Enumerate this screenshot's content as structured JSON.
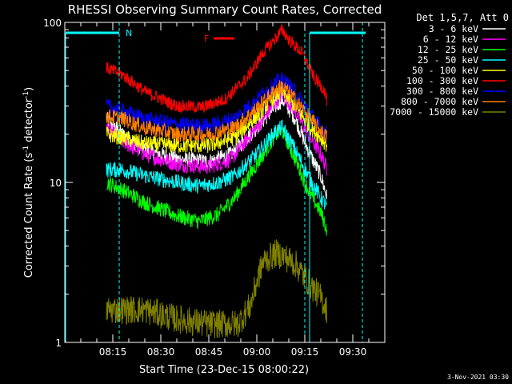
{
  "chart_data": {
    "type": "line",
    "title": "RHESSI Observing Summary Count Rates, Corrected",
    "xlabel": "Start Time (23-Dec-15 08:00:22)",
    "ylabel_main": "Corrected Count Rate (s",
    "ylabel_sup1": "-1",
    "ylabel_mid": " detector",
    "ylabel_sup2": "-1",
    "ylabel_end": ")",
    "y_scale": "log",
    "ylim": [
      1,
      100
    ],
    "xlim_minutes": [
      0,
      100
    ],
    "x_ticks": [
      {
        "label": "08:15",
        "min": 15
      },
      {
        "label": "08:30",
        "min": 30
      },
      {
        "label": "08:45",
        "min": 45
      },
      {
        "label": "09:00",
        "min": 60
      },
      {
        "label": "09:15",
        "min": 75
      },
      {
        "label": "09:30",
        "min": 90
      }
    ],
    "y_ticks": [
      {
        "label": "1",
        "value": 1
      },
      {
        "label": "10",
        "value": 10
      },
      {
        "label": "100",
        "value": 100
      }
    ],
    "legend_title": "Det 1,5,7, Att 0",
    "legend_position": "top-right",
    "series": [
      {
        "name": "3 - 6 keV",
        "color": "#ffffff",
        "points": [
          [
            13,
            25
          ],
          [
            18,
            20
          ],
          [
            25,
            16
          ],
          [
            35,
            14
          ],
          [
            45,
            13.5
          ],
          [
            52,
            15
          ],
          [
            60,
            22
          ],
          [
            66,
            30
          ],
          [
            68,
            33
          ],
          [
            72,
            25
          ],
          [
            76,
            16
          ],
          [
            80,
            11
          ],
          [
            82,
            8
          ]
        ]
      },
      {
        "name": "6 - 12 keV",
        "color": "#ff00ff",
        "points": [
          [
            13,
            22
          ],
          [
            18,
            18
          ],
          [
            25,
            15
          ],
          [
            35,
            13
          ],
          [
            45,
            12.5
          ],
          [
            52,
            14
          ],
          [
            60,
            22
          ],
          [
            66,
            32
          ],
          [
            68,
            36
          ],
          [
            72,
            28
          ],
          [
            76,
            20
          ],
          [
            80,
            15
          ],
          [
            82,
            12
          ]
        ]
      },
      {
        "name": "12 - 25 keV",
        "color": "#00ff00",
        "points": [
          [
            13,
            10
          ],
          [
            18,
            9
          ],
          [
            25,
            7.5
          ],
          [
            35,
            6.2
          ],
          [
            42,
            5.7
          ],
          [
            48,
            6.3
          ],
          [
            53,
            8
          ],
          [
            60,
            13
          ],
          [
            66,
            20
          ],
          [
            68,
            21
          ],
          [
            72,
            14
          ],
          [
            76,
            9
          ],
          [
            80,
            6.5
          ],
          [
            82,
            5
          ]
        ]
      },
      {
        "name": "25 - 50 keV",
        "color": "#00ffff",
        "points": [
          [
            13,
            12
          ],
          [
            18,
            12
          ],
          [
            25,
            11
          ],
          [
            35,
            10
          ],
          [
            42,
            9.5
          ],
          [
            48,
            10
          ],
          [
            53,
            11
          ],
          [
            60,
            15
          ],
          [
            66,
            21
          ],
          [
            68,
            22
          ],
          [
            72,
            16
          ],
          [
            76,
            11
          ],
          [
            80,
            8
          ],
          [
            82,
            7
          ]
        ]
      },
      {
        "name": "50 - 100 keV",
        "color": "#ffff00",
        "points": [
          [
            13,
            20
          ],
          [
            18,
            19
          ],
          [
            25,
            17.5
          ],
          [
            35,
            17
          ],
          [
            45,
            17
          ],
          [
            53,
            19
          ],
          [
            60,
            26
          ],
          [
            66,
            35
          ],
          [
            68,
            37
          ],
          [
            72,
            30
          ],
          [
            76,
            23
          ],
          [
            80,
            19
          ],
          [
            82,
            17
          ]
        ]
      },
      {
        "name": "100 - 300 keV",
        "color": "#ff0000",
        "points": [
          [
            13,
            52
          ],
          [
            18,
            47
          ],
          [
            25,
            37
          ],
          [
            35,
            30
          ],
          [
            43,
            29.5
          ],
          [
            50,
            33
          ],
          [
            57,
            45
          ],
          [
            62,
            65
          ],
          [
            66,
            80
          ],
          [
            68,
            90
          ],
          [
            70,
            78
          ],
          [
            74,
            65
          ],
          [
            78,
            45
          ],
          [
            81,
            38
          ],
          [
            82,
            32
          ]
        ]
      },
      {
        "name": "300 - 800 keV",
        "color": "#0000ff",
        "points": [
          [
            13,
            30
          ],
          [
            18,
            28
          ],
          [
            25,
            25
          ],
          [
            35,
            23
          ],
          [
            45,
            22.5
          ],
          [
            53,
            25
          ],
          [
            60,
            33
          ],
          [
            66,
            42
          ],
          [
            68,
            44
          ],
          [
            72,
            37
          ],
          [
            76,
            28
          ],
          [
            80,
            22
          ],
          [
            82,
            20
          ]
        ]
      },
      {
        "name": "800 - 7000 keV",
        "color": "#ff7f00",
        "points": [
          [
            13,
            26
          ],
          [
            18,
            25
          ],
          [
            25,
            22
          ],
          [
            35,
            20
          ],
          [
            45,
            20
          ],
          [
            53,
            22
          ],
          [
            60,
            29
          ],
          [
            66,
            38
          ],
          [
            68,
            40
          ],
          [
            72,
            33
          ],
          [
            76,
            26
          ],
          [
            80,
            21
          ],
          [
            82,
            19
          ]
        ]
      },
      {
        "name": "7000 - 15000 keV",
        "color": "#808000",
        "points": [
          [
            13,
            1.6
          ],
          [
            18,
            1.6
          ],
          [
            25,
            1.6
          ],
          [
            35,
            1.4
          ],
          [
            45,
            1.3
          ],
          [
            54,
            1.3
          ],
          [
            58,
            1.7
          ],
          [
            60,
            2.4
          ],
          [
            62,
            3.2
          ],
          [
            66,
            3.6
          ],
          [
            68,
            3.5
          ],
          [
            72,
            3.1
          ],
          [
            76,
            2.4
          ],
          [
            80,
            1.9
          ],
          [
            82,
            1.6
          ]
        ]
      }
    ],
    "annotations": {
      "n_label": "N",
      "f_label": "F",
      "dashed_markers_min": [
        17,
        75,
        93
      ]
    }
  },
  "footer_date": "3-Nov-2021 03:30"
}
